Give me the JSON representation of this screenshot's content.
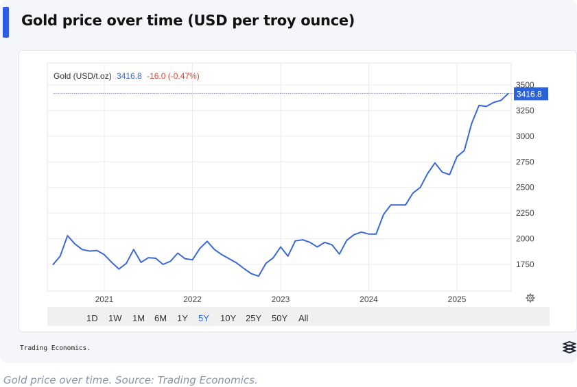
{
  "card": {
    "title": "Gold price over time (USD per troy ounce)"
  },
  "legend": {
    "label": "Gold (USD/t.oz)",
    "price": "3416.8",
    "change": "-16.0 (-0.47%)"
  },
  "last_price_badge": "3416.8",
  "range_buttons": [
    {
      "label": "1D",
      "active": false
    },
    {
      "label": "1W",
      "active": false
    },
    {
      "label": "1M",
      "active": false
    },
    {
      "label": "6M",
      "active": false
    },
    {
      "label": "1Y",
      "active": false
    },
    {
      "label": "5Y",
      "active": true
    },
    {
      "label": "10Y",
      "active": false
    },
    {
      "label": "25Y",
      "active": false
    },
    {
      "label": "50Y",
      "active": false
    },
    {
      "label": "All",
      "active": false
    }
  ],
  "source": "Trading Economics.",
  "caption": "Gold price over time. Source: Trading Economics.",
  "colors": {
    "line": "#3a67d6",
    "accent": "#2f5be0",
    "negative": "#e0463c",
    "badge": "#2a64d8"
  },
  "icons": {
    "settings": "gear-icon",
    "logo": "trading-economics-logo-icon"
  },
  "chart_data": {
    "type": "line",
    "title": "",
    "xlabel": "",
    "ylabel": "",
    "x_ticks": [
      "2021",
      "2022",
      "2023",
      "2024",
      "2025"
    ],
    "y_ticks": [
      1750,
      2000,
      2250,
      2500,
      2750,
      3000,
      3250,
      3500
    ],
    "ylim": [
      1600,
      3580
    ],
    "xlim": [
      "2020-06",
      "2025-08"
    ],
    "grid": true,
    "series": [
      {
        "name": "Gold (USD/t.oz)",
        "points": [
          [
            "2020-06",
            1745
          ],
          [
            "2020-07",
            1830
          ],
          [
            "2020-08",
            2030
          ],
          [
            "2020-09",
            1950
          ],
          [
            "2020-10",
            1895
          ],
          [
            "2020-11",
            1880
          ],
          [
            "2020-12",
            1885
          ],
          [
            "2021-01",
            1845
          ],
          [
            "2021-02",
            1770
          ],
          [
            "2021-03",
            1705
          ],
          [
            "2021-04",
            1760
          ],
          [
            "2021-05",
            1895
          ],
          [
            "2021-06",
            1770
          ],
          [
            "2021-07",
            1815
          ],
          [
            "2021-08",
            1810
          ],
          [
            "2021-09",
            1750
          ],
          [
            "2021-10",
            1780
          ],
          [
            "2021-11",
            1860
          ],
          [
            "2021-12",
            1805
          ],
          [
            "2022-01",
            1795
          ],
          [
            "2022-02",
            1905
          ],
          [
            "2022-03",
            1975
          ],
          [
            "2022-04",
            1895
          ],
          [
            "2022-05",
            1845
          ],
          [
            "2022-06",
            1805
          ],
          [
            "2022-07",
            1765
          ],
          [
            "2022-08",
            1710
          ],
          [
            "2022-09",
            1660
          ],
          [
            "2022-10",
            1635
          ],
          [
            "2022-11",
            1760
          ],
          [
            "2022-12",
            1815
          ],
          [
            "2023-01",
            1920
          ],
          [
            "2023-02",
            1830
          ],
          [
            "2023-03",
            1980
          ],
          [
            "2023-04",
            1990
          ],
          [
            "2023-05",
            1965
          ],
          [
            "2023-06",
            1920
          ],
          [
            "2023-07",
            1965
          ],
          [
            "2023-08",
            1940
          ],
          [
            "2023-09",
            1850
          ],
          [
            "2023-10",
            1985
          ],
          [
            "2023-11",
            2040
          ],
          [
            "2023-12",
            2065
          ],
          [
            "2024-01",
            2045
          ],
          [
            "2024-02",
            2045
          ],
          [
            "2024-03",
            2235
          ],
          [
            "2024-04",
            2330
          ],
          [
            "2024-05",
            2330
          ],
          [
            "2024-06",
            2330
          ],
          [
            "2024-07",
            2445
          ],
          [
            "2024-08",
            2500
          ],
          [
            "2024-09",
            2635
          ],
          [
            "2024-10",
            2740
          ],
          [
            "2024-11",
            2650
          ],
          [
            "2024-12",
            2625
          ],
          [
            "2025-01",
            2800
          ],
          [
            "2025-02",
            2860
          ],
          [
            "2025-03",
            3125
          ],
          [
            "2025-04",
            3300
          ],
          [
            "2025-05",
            3290
          ],
          [
            "2025-06",
            3330
          ],
          [
            "2025-07",
            3350
          ],
          [
            "2025-08",
            3417
          ]
        ]
      }
    ]
  }
}
